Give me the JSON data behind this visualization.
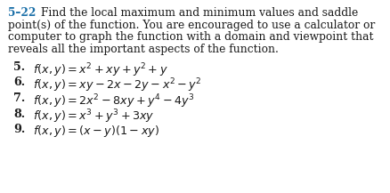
{
  "background_color": "#ffffff",
  "header_num": "5–22",
  "header_num_color": "#1a6fa8",
  "header_body": " Find the local maximum and minimum values and saddle",
  "header_lines": [
    "point(s) of the function. You are encouraged to use a calculator or",
    "computer to graph the function with a domain and viewpoint that",
    "reveals all the important aspects of the function."
  ],
  "text_color": "#1a1a1a",
  "problems": [
    {
      "num": "5.",
      "formula": "$f(x, y) = x^2 + xy + y^2 + y$"
    },
    {
      "num": "6.",
      "formula": "$f(x, y) = xy - 2x - 2y - x^2 - y^2$"
    },
    {
      "num": "7.",
      "formula": "$f(x, y) = 2x^2 - 8xy + y^4 - 4y^3$"
    },
    {
      "num": "8.",
      "formula": "$f(x, y) = x^3 + y^3 + 3xy$"
    },
    {
      "num": "9.",
      "formula": "$f(x, y) = (x - y)(1 - xy)$"
    }
  ],
  "fig_width": 4.38,
  "fig_height": 2.17,
  "dpi": 100,
  "font_size_header": 8.8,
  "font_size_prob": 9.2
}
